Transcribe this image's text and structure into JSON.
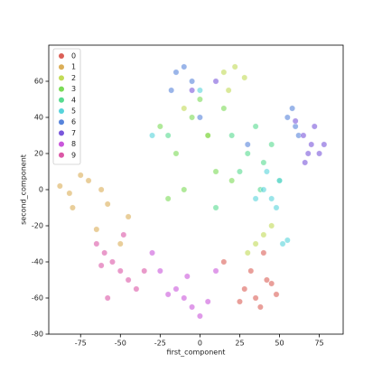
{
  "chart_data": {
    "type": "scatter",
    "x_label": "first_component",
    "y_label": "second_component",
    "xlim": [
      -95,
      90
    ],
    "ylim": [
      -80,
      80
    ],
    "xticks": [
      -75,
      -50,
      -25,
      0,
      25,
      50,
      75
    ],
    "yticks": [
      -80,
      -60,
      -40,
      -20,
      0,
      20,
      40,
      60
    ],
    "legend": "upper left",
    "grid": false,
    "series": [
      {
        "name": "0",
        "color": "#db5f57",
        "x": [
          28,
          35,
          42,
          48,
          38,
          25,
          32,
          45,
          15,
          40
        ],
        "values": [
          -55,
          -60,
          -50,
          -58,
          -65,
          -62,
          -45,
          -52,
          -40,
          -35
        ]
      },
      {
        "name": "1",
        "color": "#dbae57",
        "x": [
          -88,
          -82,
          -75,
          -70,
          -62,
          -58,
          -80,
          -65,
          -50,
          -45
        ],
        "values": [
          2,
          -2,
          8,
          5,
          0,
          -8,
          -10,
          -22,
          -30,
          -15
        ]
      },
      {
        "name": "2",
        "color": "#c2db57",
        "x": [
          15,
          22,
          28,
          18,
          35,
          40,
          30,
          45,
          -10,
          5
        ],
        "values": [
          65,
          68,
          62,
          55,
          -30,
          -25,
          -35,
          -20,
          45,
          30
        ]
      },
      {
        "name": "3",
        "color": "#7bdb57",
        "x": [
          -5,
          5,
          -15,
          10,
          0,
          -25,
          20,
          -20,
          15,
          -10
        ],
        "values": [
          40,
          30,
          20,
          10,
          50,
          35,
          5,
          -5,
          45,
          0
        ]
      },
      {
        "name": "4",
        "color": "#57db8f",
        "x": [
          30,
          40,
          45,
          35,
          25,
          50,
          -20,
          10,
          20,
          38
        ],
        "values": [
          20,
          15,
          25,
          35,
          10,
          5,
          30,
          -10,
          30,
          0
        ]
      },
      {
        "name": "5",
        "color": "#57d3db",
        "x": [
          45,
          48,
          50,
          40,
          55,
          52,
          35,
          42,
          -30,
          0
        ],
        "values": [
          -5,
          -10,
          5,
          0,
          -28,
          -30,
          -5,
          10,
          30,
          55
        ]
      },
      {
        "name": "6",
        "color": "#5784db",
        "x": [
          -15,
          -10,
          -5,
          -18,
          55,
          60,
          62,
          58,
          0,
          30
        ],
        "values": [
          65,
          68,
          60,
          55,
          40,
          35,
          30,
          45,
          40,
          25
        ]
      },
      {
        "name": "7",
        "color": "#7957db",
        "x": [
          65,
          70,
          75,
          72,
          68,
          78,
          60,
          66,
          -5,
          10
        ],
        "values": [
          30,
          25,
          20,
          35,
          20,
          25,
          38,
          15,
          55,
          60
        ]
      },
      {
        "name": "8",
        "color": "#c957db",
        "x": [
          -15,
          -10,
          -5,
          -20,
          0,
          5,
          -25,
          -8,
          -30,
          10
        ],
        "values": [
          -55,
          -60,
          -65,
          -58,
          -70,
          -62,
          -45,
          -48,
          -35,
          -45
        ]
      },
      {
        "name": "9",
        "color": "#db57a6",
        "x": [
          -60,
          -55,
          -50,
          -65,
          -45,
          -40,
          -58,
          -35,
          -48,
          -62
        ],
        "values": [
          -35,
          -40,
          -45,
          -30,
          -50,
          -55,
          -60,
          -45,
          -25,
          -42
        ]
      }
    ]
  }
}
